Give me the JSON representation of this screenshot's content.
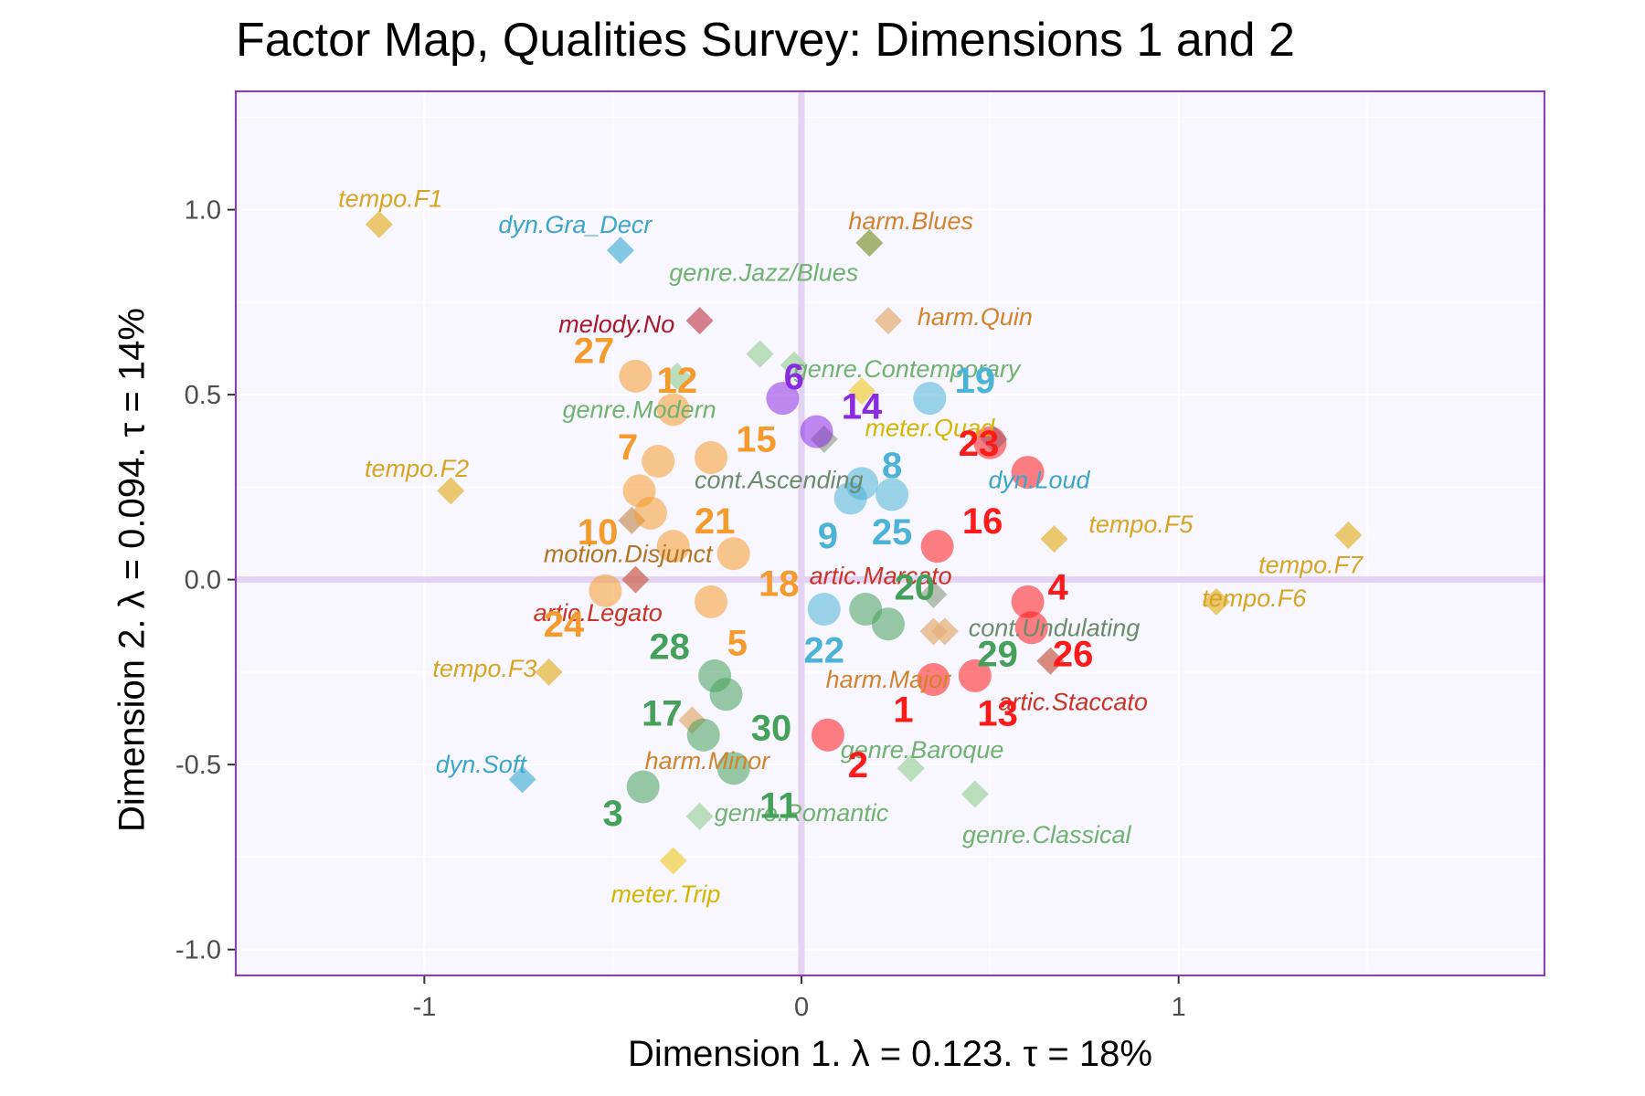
{
  "chart_data": {
    "type": "scatter",
    "title": "Factor Map, Qualities Survey: Dimensions 1 and 2",
    "xlabel": "Dimension 1.   λ = 0.123.  τ = 18%",
    "ylabel": "Dimension 2.   λ = 0.094.  τ = 14%",
    "xlim": [
      -1.5,
      1.97
    ],
    "ylim": [
      -1.07,
      1.32
    ],
    "x_ticks": [
      -1,
      0,
      1
    ],
    "x_tick_labels": [
      "-1",
      "0",
      "1"
    ],
    "y_ticks": [
      -1.0,
      -0.5,
      0.0,
      0.5,
      1.0
    ],
    "y_tick_labels": [
      "-1.0",
      "-0.5",
      "0.0",
      "0.5",
      "1.0"
    ],
    "grid": true,
    "colors": {
      "background": "#f8f6ff",
      "panel_border": "#9933cc",
      "origin_axes": "#e3d2f2",
      "orange": "#f59a2b",
      "green": "#45a05a",
      "red": "#ff1a1a",
      "blue": "#4ab3d6",
      "purple": "#8a2be2"
    },
    "series": [
      {
        "name": "Survey respondents (rows)",
        "marker": "circle",
        "points": [
          {
            "label": "1",
            "x": 0.35,
            "y": -0.27,
            "color": "red"
          },
          {
            "label": "2",
            "x": 0.07,
            "y": -0.42,
            "color": "red"
          },
          {
            "label": "3",
            "x": -0.42,
            "y": -0.56,
            "color": "green"
          },
          {
            "label": "5",
            "x": -0.24,
            "y": -0.06,
            "color": "orange"
          },
          {
            "label": "6",
            "x": -0.05,
            "y": 0.49,
            "color": "purple"
          },
          {
            "label": "7",
            "x": -0.38,
            "y": 0.32,
            "color": "orange"
          },
          {
            "label": "8",
            "x": 0.16,
            "y": 0.26,
            "color": "blue"
          },
          {
            "label": "9",
            "x": 0.13,
            "y": 0.22,
            "color": "blue"
          },
          {
            "label": "10",
            "x": -0.43,
            "y": 0.24,
            "color": "orange"
          },
          {
            "label": "11",
            "x": -0.18,
            "y": -0.51,
            "color": "green"
          },
          {
            "label": "12",
            "x": -0.34,
            "y": 0.46,
            "color": "orange"
          },
          {
            "label": "13",
            "x": 0.46,
            "y": -0.26,
            "color": "red"
          },
          {
            "label": "14",
            "x": 0.04,
            "y": 0.4,
            "color": "purple"
          },
          {
            "label": "15",
            "x": -0.24,
            "y": 0.33,
            "color": "orange"
          },
          {
            "label": "16",
            "x": 0.36,
            "y": 0.09,
            "color": "red"
          },
          {
            "label": "17",
            "x": -0.26,
            "y": -0.42,
            "color": "green"
          },
          {
            "label": "18",
            "x": -0.18,
            "y": 0.07,
            "color": "orange"
          },
          {
            "label": "19",
            "x": 0.34,
            "y": 0.49,
            "color": "blue"
          },
          {
            "label": "20",
            "x": 0.23,
            "y": -0.12,
            "color": "green"
          },
          {
            "label": "21",
            "x": -0.34,
            "y": 0.09,
            "color": "orange"
          },
          {
            "label": "22",
            "x": 0.06,
            "y": -0.08,
            "color": "blue"
          },
          {
            "label": "23",
            "x": 0.5,
            "y": 0.37,
            "color": "red"
          },
          {
            "label": "24",
            "x": -0.52,
            "y": -0.03,
            "color": "orange"
          },
          {
            "label": "25",
            "x": 0.24,
            "y": 0.23,
            "color": "blue"
          },
          {
            "label": "26",
            "x": 0.61,
            "y": -0.13,
            "color": "red"
          },
          {
            "label": "27",
            "x": -0.44,
            "y": 0.55,
            "color": "orange"
          },
          {
            "label": "28",
            "x": -0.23,
            "y": -0.26,
            "color": "green"
          },
          {
            "label": "29",
            "x": 0.17,
            "y": -0.08,
            "color": "green"
          },
          {
            "label": "30",
            "x": -0.2,
            "y": -0.31,
            "color": "green"
          },
          {
            "label": "4",
            "x": 0.6,
            "y": -0.06,
            "color": "red"
          },
          {
            "label": "",
            "x": 0.6,
            "y": 0.29,
            "color": "red"
          },
          {
            "label": "",
            "x": -0.4,
            "y": 0.18,
            "color": "orange"
          }
        ]
      },
      {
        "name": "Qualities (columns)",
        "marker": "diamond",
        "points": [
          {
            "label": "tempo.F1",
            "x": -1.12,
            "y": 0.96,
            "color": "#e6b840"
          },
          {
            "label": "dyn.Gra_Decr",
            "x": -0.48,
            "y": 0.89,
            "color": "#5cb8d9"
          },
          {
            "label": "harm.Blues",
            "x": 0.18,
            "y": 0.91,
            "color": "#8a9e45"
          },
          {
            "label": "genre.Jazz/Blues",
            "x": -0.11,
            "y": 0.61,
            "color": "#a6d4a6"
          },
          {
            "label": "harm.Quin",
            "x": 0.23,
            "y": 0.7,
            "color": "#e5b07a"
          },
          {
            "label": "melody.No",
            "x": -0.27,
            "y": 0.7,
            "color": "#cc5566"
          },
          {
            "label": "genre.Contemporary",
            "x": -0.02,
            "y": 0.58,
            "color": "#a6d4a6"
          },
          {
            "label": "genre.Modern",
            "x": -0.33,
            "y": 0.55,
            "color": "#a6d4a6"
          },
          {
            "label": "meter.Quad",
            "x": 0.16,
            "y": 0.51,
            "color": "#f0d24a"
          },
          {
            "label": "cont.Ascending",
            "x": 0.06,
            "y": 0.38,
            "color": "#9caa96"
          },
          {
            "label": "dyn.Loud",
            "x": 0.51,
            "y": 0.38,
            "color": "#5cb8d9"
          },
          {
            "label": "tempo.F2",
            "x": -0.93,
            "y": 0.24,
            "color": "#e6b840"
          },
          {
            "label": "motion.Disjunct",
            "x": -0.45,
            "y": 0.16,
            "color": "#c99a6a"
          },
          {
            "label": "tempo.F5",
            "x": 0.67,
            "y": 0.11,
            "color": "#e6b840"
          },
          {
            "label": "tempo.F7",
            "x": 1.45,
            "y": 0.12,
            "color": "#e6b840"
          },
          {
            "label": "artic.Marcato",
            "x": 0.35,
            "y": -0.04,
            "color": "#9caa96"
          },
          {
            "label": "artic.Legato",
            "x": -0.44,
            "y": 0.0,
            "color": "#cc6655"
          },
          {
            "label": "tempo.F6",
            "x": 1.1,
            "y": -0.06,
            "color": "#e6b840"
          },
          {
            "label": "cont.Undulating",
            "x": 0.35,
            "y": -0.14,
            "color": "#e5b07a"
          },
          {
            "label": "tempo.F3",
            "x": -0.67,
            "y": -0.25,
            "color": "#e6b840"
          },
          {
            "label": "harm.Major",
            "x": 0.38,
            "y": -0.14,
            "color": "#e5b07a"
          },
          {
            "label": "artic.Staccato",
            "x": 0.66,
            "y": -0.22,
            "color": "#cc6655"
          },
          {
            "label": "harm.Minor",
            "x": -0.29,
            "y": -0.38,
            "color": "#e5b07a"
          },
          {
            "label": "genre.Baroque",
            "x": 0.29,
            "y": -0.51,
            "color": "#a6d4a6"
          },
          {
            "label": "dyn.Soft",
            "x": -0.74,
            "y": -0.54,
            "color": "#5cb8d9"
          },
          {
            "label": "genre.Classical",
            "x": 0.46,
            "y": -0.58,
            "color": "#a6d4a6"
          },
          {
            "label": "genre.Romantic",
            "x": -0.27,
            "y": -0.64,
            "color": "#a6d4a6"
          },
          {
            "label": "meter.Trip",
            "x": -0.34,
            "y": -0.76,
            "color": "#f0d24a"
          }
        ]
      }
    ],
    "row_labels": [
      {
        "text": "27",
        "x": -0.55,
        "y": 0.62,
        "color": "orange"
      },
      {
        "text": "12",
        "x": -0.33,
        "y": 0.54,
        "color": "orange"
      },
      {
        "text": "6",
        "x": -0.02,
        "y": 0.55,
        "color": "purple"
      },
      {
        "text": "19",
        "x": 0.46,
        "y": 0.54,
        "color": "blue"
      },
      {
        "text": "14",
        "x": 0.16,
        "y": 0.47,
        "color": "purple"
      },
      {
        "text": "7",
        "x": -0.46,
        "y": 0.36,
        "color": "orange"
      },
      {
        "text": "15",
        "x": -0.12,
        "y": 0.38,
        "color": "orange"
      },
      {
        "text": "23",
        "x": 0.47,
        "y": 0.37,
        "color": "red"
      },
      {
        "text": "8",
        "x": 0.24,
        "y": 0.31,
        "color": "blue"
      },
      {
        "text": "16",
        "x": 0.48,
        "y": 0.16,
        "color": "red"
      },
      {
        "text": "21",
        "x": -0.23,
        "y": 0.16,
        "color": "orange"
      },
      {
        "text": "10",
        "x": -0.54,
        "y": 0.13,
        "color": "orange"
      },
      {
        "text": "9",
        "x": 0.07,
        "y": 0.12,
        "color": "blue"
      },
      {
        "text": "25",
        "x": 0.24,
        "y": 0.13,
        "color": "blue"
      },
      {
        "text": "18",
        "x": -0.06,
        "y": -0.01,
        "color": "orange"
      },
      {
        "text": "20",
        "x": 0.3,
        "y": -0.02,
        "color": "green"
      },
      {
        "text": "4",
        "x": 0.68,
        "y": -0.02,
        "color": "red"
      },
      {
        "text": "24",
        "x": -0.63,
        "y": -0.12,
        "color": "orange"
      },
      {
        "text": "28",
        "x": -0.35,
        "y": -0.18,
        "color": "green"
      },
      {
        "text": "5",
        "x": -0.17,
        "y": -0.17,
        "color": "orange"
      },
      {
        "text": "22",
        "x": 0.06,
        "y": -0.19,
        "color": "blue"
      },
      {
        "text": "29",
        "x": 0.52,
        "y": -0.2,
        "color": "green"
      },
      {
        "text": "26",
        "x": 0.72,
        "y": -0.2,
        "color": "red"
      },
      {
        "text": "1",
        "x": 0.27,
        "y": -0.35,
        "color": "red"
      },
      {
        "text": "17",
        "x": -0.37,
        "y": -0.36,
        "color": "green"
      },
      {
        "text": "13",
        "x": 0.52,
        "y": -0.36,
        "color": "red"
      },
      {
        "text": "30",
        "x": -0.08,
        "y": -0.4,
        "color": "green"
      },
      {
        "text": "2",
        "x": 0.15,
        "y": -0.5,
        "color": "red"
      },
      {
        "text": "11",
        "x": -0.06,
        "y": -0.61,
        "color": "green"
      },
      {
        "text": "3",
        "x": -0.5,
        "y": -0.63,
        "color": "green"
      }
    ],
    "column_labels": [
      {
        "text": "tempo.F1",
        "x": -1.09,
        "y": 1.03,
        "color": "#d9a520"
      },
      {
        "text": "dyn.Gra_Decr",
        "x": -0.6,
        "y": 0.96,
        "color": "#3aa6c9"
      },
      {
        "text": "harm.Blues",
        "x": 0.29,
        "y": 0.97,
        "color": "#d4832c"
      },
      {
        "text": "genre.Jazz/Blues",
        "x": -0.1,
        "y": 0.83,
        "color": "#6fb36f"
      },
      {
        "text": "harm.Quin",
        "x": 0.46,
        "y": 0.71,
        "color": "#d4832c"
      },
      {
        "text": "melody.No",
        "x": -0.49,
        "y": 0.69,
        "color": "#a8182d"
      },
      {
        "text": "genre.Contemporary",
        "x": 0.28,
        "y": 0.57,
        "color": "#6fb36f"
      },
      {
        "text": "genre.Modern",
        "x": -0.43,
        "y": 0.46,
        "color": "#6fb36f"
      },
      {
        "text": "meter.Quad",
        "x": 0.34,
        "y": 0.41,
        "color": "#d4b800"
      },
      {
        "text": "cont.Ascending",
        "x": -0.06,
        "y": 0.27,
        "color": "#6b8c6b"
      },
      {
        "text": "dyn.Loud",
        "x": 0.63,
        "y": 0.27,
        "color": "#3aa6c9"
      },
      {
        "text": "tempo.F2",
        "x": -1.02,
        "y": 0.3,
        "color": "#d9a520"
      },
      {
        "text": "motion.Disjunct",
        "x": -0.46,
        "y": 0.07,
        "color": "#b3741f"
      },
      {
        "text": "tempo.F5",
        "x": 0.9,
        "y": 0.15,
        "color": "#d9a520"
      },
      {
        "text": "tempo.F7",
        "x": 1.35,
        "y": 0.04,
        "color": "#d9a520"
      },
      {
        "text": "artic.Marcato",
        "x": 0.21,
        "y": 0.01,
        "color": "#cc3322"
      },
      {
        "text": "artic.Legato",
        "x": -0.54,
        "y": -0.09,
        "color": "#cc3322"
      },
      {
        "text": "tempo.F6",
        "x": 1.2,
        "y": -0.05,
        "color": "#d9a520"
      },
      {
        "text": "cont.Undulating",
        "x": 0.67,
        "y": -0.13,
        "color": "#6b8c6b"
      },
      {
        "text": "tempo.F3",
        "x": -0.84,
        "y": -0.24,
        "color": "#d9a520"
      },
      {
        "text": "harm.Major",
        "x": 0.23,
        "y": -0.27,
        "color": "#d4832c"
      },
      {
        "text": "artic.Staccato",
        "x": 0.72,
        "y": -0.33,
        "color": "#cc3322"
      },
      {
        "text": "harm.Minor",
        "x": -0.25,
        "y": -0.49,
        "color": "#d4832c"
      },
      {
        "text": "genre.Baroque",
        "x": 0.32,
        "y": -0.46,
        "color": "#6fb36f"
      },
      {
        "text": "dyn.Soft",
        "x": -0.85,
        "y": -0.5,
        "color": "#3aa6c9"
      },
      {
        "text": "genre.Classical",
        "x": 0.65,
        "y": -0.69,
        "color": "#6fb36f"
      },
      {
        "text": "genre.Romantic",
        "x": 0.0,
        "y": -0.63,
        "color": "#6fb36f"
      },
      {
        "text": "meter.Trip",
        "x": -0.36,
        "y": -0.85,
        "color": "#d4b800"
      }
    ]
  }
}
